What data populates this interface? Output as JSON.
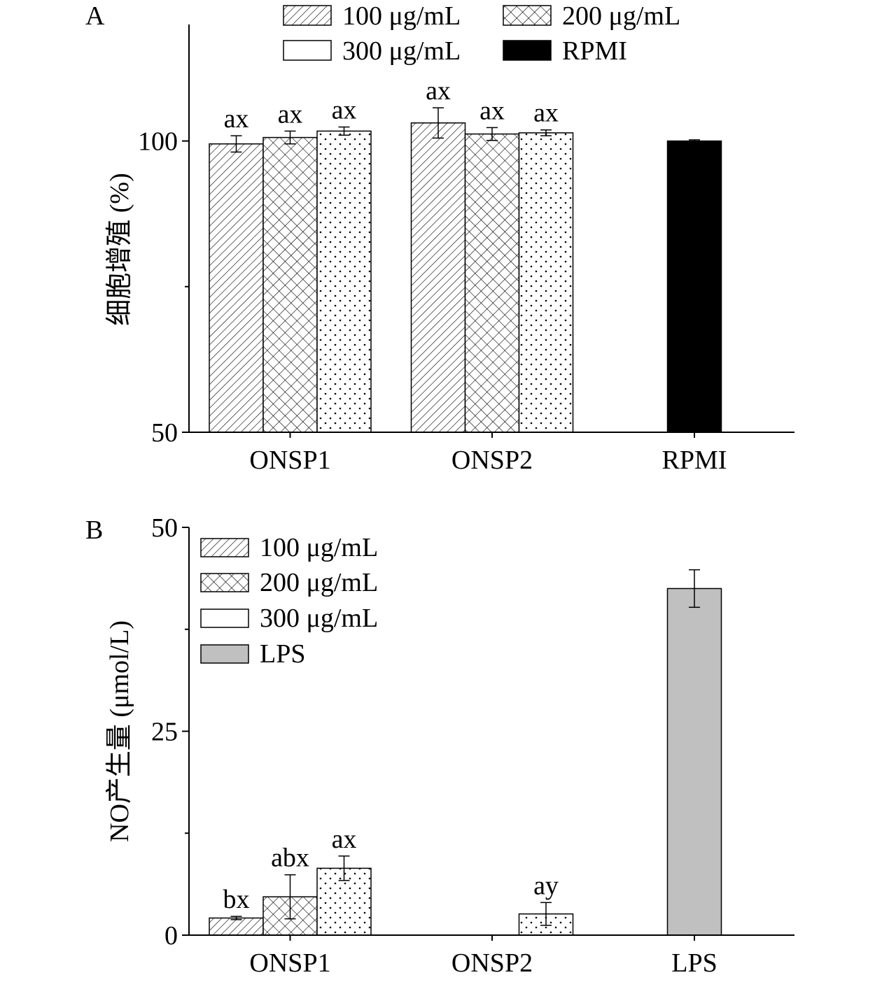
{
  "chart_data": [
    {
      "panel": "A",
      "type": "bar",
      "ylabel": "细胞增殖 (%)",
      "ylim": [
        50,
        120
      ],
      "yticks": [
        50,
        100
      ],
      "minor_yticks": [
        75
      ],
      "categories": [
        "ONSP1",
        "ONSP2",
        "RPMI"
      ],
      "legend": [
        "100 μg/mL",
        "200 μg/mL",
        "300 μg/mL",
        "RPMI"
      ],
      "legend_position": "top",
      "bars": [
        {
          "category": "ONSP1",
          "series": "100 μg/mL",
          "value": 99.5,
          "error": 1.4,
          "label": "ax",
          "pattern": "hatch"
        },
        {
          "category": "ONSP1",
          "series": "200 μg/mL",
          "value": 100.6,
          "error": 1.1,
          "label": "ax",
          "pattern": "cross"
        },
        {
          "category": "ONSP1",
          "series": "300 μg/mL",
          "value": 101.7,
          "error": 0.7,
          "label": "ax",
          "pattern": "dots"
        },
        {
          "category": "ONSP2",
          "series": "100 μg/mL",
          "value": 103.1,
          "error": 2.6,
          "label": "ax",
          "pattern": "hatch"
        },
        {
          "category": "ONSP2",
          "series": "200 μg/mL",
          "value": 101.2,
          "error": 1.1,
          "label": "ax",
          "pattern": "cross"
        },
        {
          "category": "ONSP2",
          "series": "300 μg/mL",
          "value": 101.4,
          "error": 0.5,
          "label": "ax",
          "pattern": "dots"
        },
        {
          "category": "RPMI",
          "series": "RPMI",
          "value": 100.0,
          "error": 0.2,
          "label": "",
          "pattern": "black"
        }
      ]
    },
    {
      "panel": "B",
      "type": "bar",
      "ylabel": "NO产生量 (μmol/L)",
      "ylim": [
        0,
        50
      ],
      "yticks": [
        0,
        25,
        50
      ],
      "minor_yticks": [
        12.5,
        37.5
      ],
      "categories": [
        "ONSP1",
        "ONSP2",
        "LPS"
      ],
      "legend": [
        "100 μg/mL",
        "200 μg/mL",
        "300 μg/mL",
        "LPS"
      ],
      "legend_position": "top-left",
      "bars": [
        {
          "category": "ONSP1",
          "series": "100 μg/mL",
          "value": 2.1,
          "error": 0.2,
          "label": "bx",
          "pattern": "hatch"
        },
        {
          "category": "ONSP1",
          "series": "200 μg/mL",
          "value": 4.7,
          "error": 2.7,
          "label": "abx",
          "pattern": "cross"
        },
        {
          "category": "ONSP1",
          "series": "300 μg/mL",
          "value": 8.2,
          "error": 1.5,
          "label": "ax",
          "pattern": "dots"
        },
        {
          "category": "ONSP2",
          "series": "300 μg/mL",
          "value": 2.6,
          "error": 1.4,
          "label": "ay",
          "pattern": "dots"
        },
        {
          "category": "LPS",
          "series": "LPS",
          "value": 42.5,
          "error": 2.3,
          "label": "",
          "pattern": "gray"
        }
      ]
    }
  ],
  "colors": {
    "black": "#000000",
    "gray": "#c0c0c0"
  }
}
